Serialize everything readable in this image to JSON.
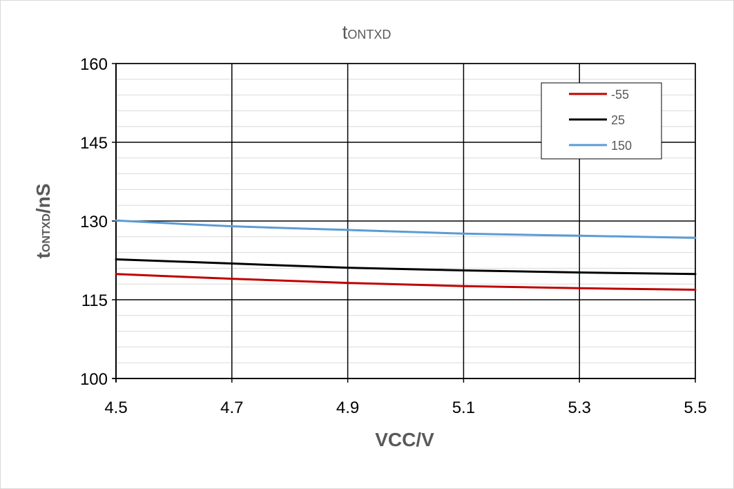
{
  "chart_data": {
    "type": "line",
    "title": {
      "main": "t",
      "sub": "ONTXD"
    },
    "xlabel": "VCC/V",
    "ylabel": {
      "main": "t",
      "sub": "ONTXD",
      "suffix": "/nS"
    },
    "xlim": [
      4.5,
      5.5
    ],
    "ylim": [
      100,
      160
    ],
    "x_ticks": [
      "4.5",
      "4.7",
      "4.9",
      "5.1",
      "5.3",
      "5.5"
    ],
    "y_ticks": [
      "100",
      "115",
      "130",
      "145",
      "160"
    ],
    "x_tick_values": [
      4.5,
      4.7,
      4.9,
      5.1,
      5.3,
      5.5
    ],
    "y_tick_values": [
      100,
      115,
      130,
      145,
      160
    ],
    "grid": {
      "major": true,
      "minor_y_step": 3
    },
    "legend_position": "top-right",
    "series": [
      {
        "name": "-55",
        "color": "#c00000",
        "x": [
          4.5,
          4.7,
          4.9,
          5.1,
          5.3,
          5.5
        ],
        "y": [
          119.9,
          119.0,
          118.2,
          117.6,
          117.2,
          116.9
        ]
      },
      {
        "name": "25",
        "color": "#000000",
        "x": [
          4.5,
          4.7,
          4.9,
          5.1,
          5.3,
          5.5
        ],
        "y": [
          122.7,
          121.9,
          121.1,
          120.6,
          120.2,
          119.9
        ]
      },
      {
        "name": "150",
        "color": "#5b9bd5",
        "x": [
          4.5,
          4.7,
          4.9,
          5.1,
          5.3,
          5.5
        ],
        "y": [
          130.1,
          129.0,
          128.3,
          127.6,
          127.2,
          126.8
        ]
      }
    ]
  }
}
